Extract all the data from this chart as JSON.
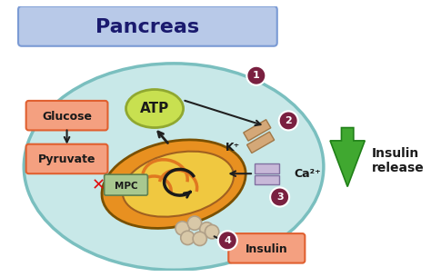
{
  "title": "Pancreas",
  "title_box_color": "#b8c9e8",
  "title_box_edge": "#7a9ad4",
  "cell_color": "#c8e8e8",
  "cell_edge": "#7abfbf",
  "bg_color": "#ffffff",
  "labels": {
    "glucose": "Glucose",
    "pyruvate": "Pyruvate",
    "mpc": "MPC",
    "atp": "ATP",
    "kplus": "K⁺",
    "ca2plus": "Ca²⁺",
    "insulin_box": "Insulin",
    "insulin_release": "Insulin\nrelease",
    "num1": "1",
    "num2": "2",
    "num3": "3",
    "num4": "4"
  },
  "label_box_color": "#f4a080",
  "label_box_edge": "#e06030",
  "mpc_box_color": "#a8c890",
  "mpc_box_edge": "#608050",
  "atp_color": "#c8e050",
  "atp_edge": "#90a830",
  "mito_outer": "#e89020",
  "mito_inner": "#f0c840",
  "mito_inner2": "#e07820",
  "circle_num_color": "#7a2040",
  "arrow_color": "#202020",
  "red_x_color": "#e01010",
  "green_arrow_color": "#40a830",
  "channel_color_k": "#d4a878",
  "channel_color_ca": "#c8b8d8",
  "granule_color": "#d8c8a8"
}
